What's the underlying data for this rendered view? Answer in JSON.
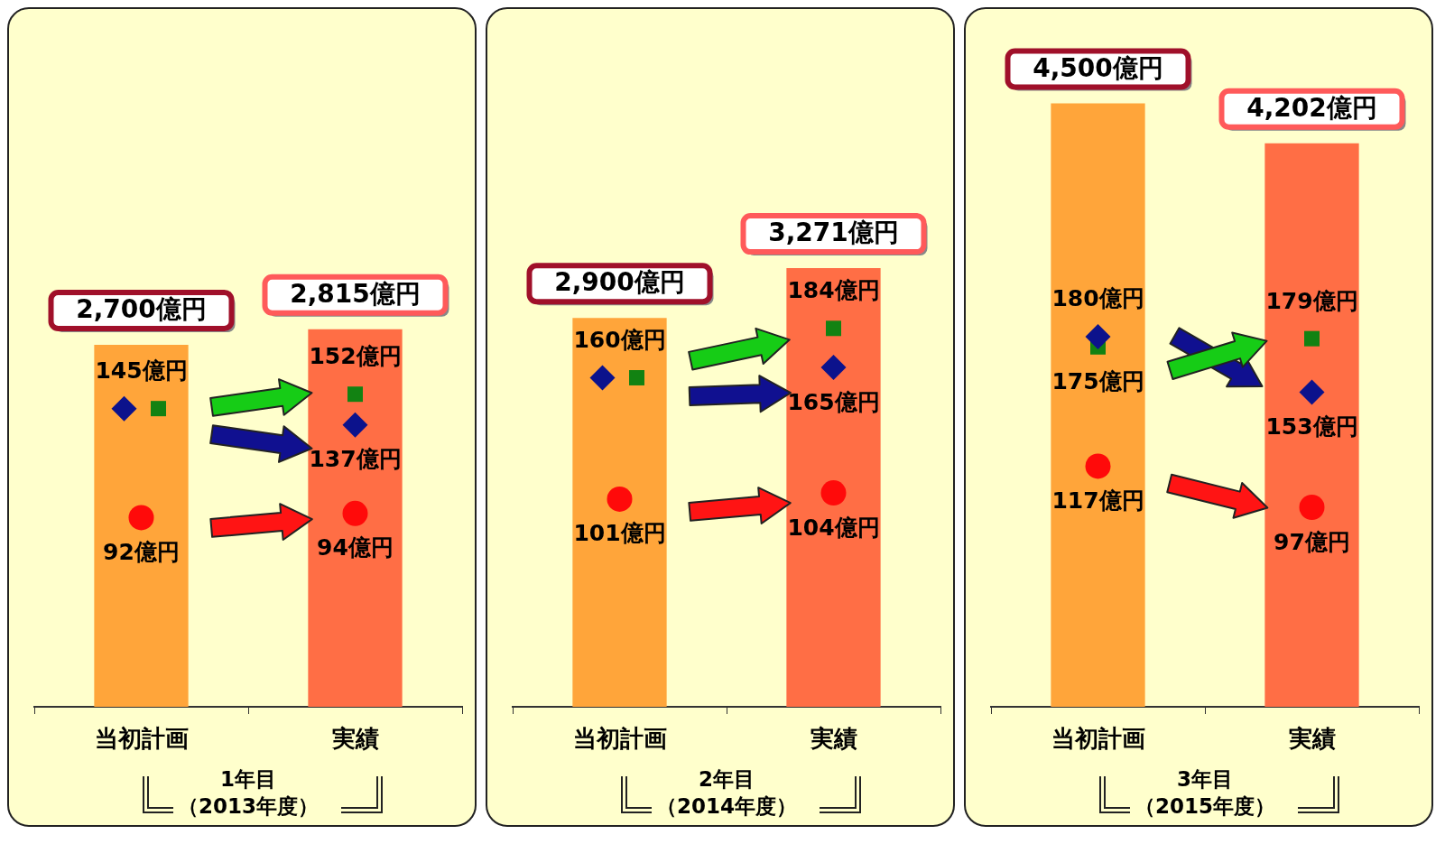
{
  "chart_data": [
    {
      "type": "bar",
      "categories": [
        "当初計画",
        "実績"
      ],
      "xlabel": "1年目（2013年度）",
      "grid": false,
      "legend": false,
      "series": [
        {
          "colors": [
            "#ffa53a",
            "#ff6e45"
          ],
          "values": [
            2700,
            2815
          ],
          "value_labels": [
            "2,700億円",
            "2,815億円"
          ]
        },
        {
          "type": "scatter",
          "marker": "diamond",
          "axis": "y2",
          "color": "#0c128c",
          "values": [
            145,
            137
          ],
          "value_labels": [
            null,
            "137億円"
          ]
        },
        {
          "type": "scatter",
          "marker": "square",
          "axis": "y2",
          "color": "#128212",
          "values": [
            145,
            152
          ],
          "value_labels": [
            "145億円",
            "152億円"
          ]
        },
        {
          "type": "scatter",
          "marker": "circle",
          "axis": "y2",
          "color": "#ff0a0a",
          "values": [
            92,
            94
          ],
          "value_labels": [
            "92億円",
            "94億円"
          ]
        }
      ]
    },
    {
      "type": "bar",
      "categories": [
        "当初計画",
        "実績"
      ],
      "xlabel": "2年目（2014年度）",
      "grid": false,
      "legend": false,
      "series": [
        {
          "colors": [
            "#ffa53a",
            "#ff6e45"
          ],
          "values": [
            2900,
            3271
          ],
          "value_labels": [
            "2,900億円",
            "3,271億円"
          ]
        },
        {
          "type": "scatter",
          "marker": "diamond",
          "axis": "y2",
          "color": "#0c128c",
          "values": [
            160,
            165
          ],
          "value_labels": [
            null,
            "165億円"
          ]
        },
        {
          "type": "scatter",
          "marker": "square",
          "axis": "y2",
          "color": "#128212",
          "values": [
            160,
            184
          ],
          "value_labels": [
            "160億円",
            "184億円"
          ]
        },
        {
          "type": "scatter",
          "marker": "circle",
          "axis": "y2",
          "color": "#ff0a0a",
          "values": [
            101,
            104
          ],
          "value_labels": [
            "101億円",
            "104億円"
          ]
        }
      ]
    },
    {
      "type": "bar",
      "categories": [
        "当初計画",
        "実績"
      ],
      "xlabel": "3年目（2015年度）",
      "grid": false,
      "legend": false,
      "series": [
        {
          "colors": [
            "#ffa53a",
            "#ff6e45"
          ],
          "values": [
            4500,
            4202
          ],
          "value_labels": [
            "4,500億円",
            "4,202億円"
          ]
        },
        {
          "type": "scatter",
          "marker": "diamond",
          "axis": "y2",
          "color": "#0c128c",
          "values": [
            180,
            153
          ],
          "value_labels": [
            "180億円",
            "153億円"
          ]
        },
        {
          "type": "scatter",
          "marker": "square",
          "axis": "y2",
          "color": "#128212",
          "values": [
            175,
            179
          ],
          "value_labels": [
            "175億円",
            "179億円"
          ]
        },
        {
          "type": "scatter",
          "marker": "circle",
          "axis": "y2",
          "color": "#ff0a0a",
          "values": [
            117,
            97
          ],
          "value_labels": [
            "117億円",
            "97億円"
          ]
        }
      ]
    }
  ]
}
